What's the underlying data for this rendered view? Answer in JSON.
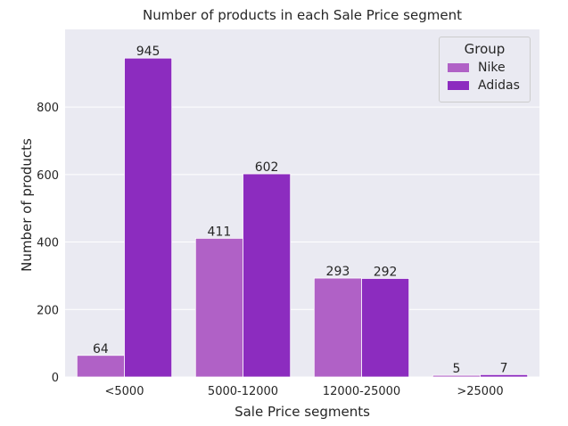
{
  "chart_data": {
    "type": "bar",
    "title": "Number of products in each Sale Price segment",
    "xlabel": "Sale Price segments",
    "ylabel": "Number of products",
    "categories": [
      "<5000",
      "5000-12000",
      "12000-25000",
      ">25000"
    ],
    "series": [
      {
        "name": "Nike",
        "values": [
          64,
          411,
          293,
          5
        ],
        "color": "#b061c6"
      },
      {
        "name": "Adidas",
        "values": [
          945,
          602,
          292,
          7
        ],
        "color": "#8c2cbf"
      }
    ],
    "ylim": [
      0,
      1030
    ],
    "yticks": [
      0,
      200,
      400,
      600,
      800
    ],
    "grid": true,
    "legend": {
      "title": "Group",
      "placement": "top-right"
    },
    "background_color": "#eaeaf2"
  }
}
